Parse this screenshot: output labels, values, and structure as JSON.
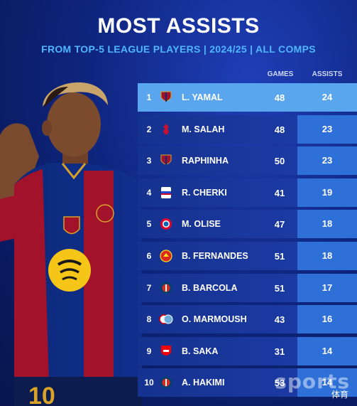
{
  "header": {
    "title": "MOST ASSISTS",
    "subtitle": "FROM TOP-5 LEAGUE PLAYERS | 2024/25 | ALL COMPS"
  },
  "columns": {
    "games": "GAMES",
    "assists": "ASSISTS"
  },
  "rows": [
    {
      "rank": "1",
      "name": "L. YAMAL",
      "games": "48",
      "assists": "24",
      "club_icon": "barcelona-crest-icon"
    },
    {
      "rank": "2",
      "name": "M. SALAH",
      "games": "48",
      "assists": "23",
      "club_icon": "liverpool-crest-icon"
    },
    {
      "rank": "3",
      "name": "RAPHINHA",
      "games": "50",
      "assists": "23",
      "club_icon": "barcelona-crest-icon"
    },
    {
      "rank": "4",
      "name": "R. CHERKI",
      "games": "41",
      "assists": "19",
      "club_icon": "lyon-crest-icon"
    },
    {
      "rank": "5",
      "name": "M. OLISE",
      "games": "47",
      "assists": "18",
      "club_icon": "bayern-crest-icon"
    },
    {
      "rank": "6",
      "name": "B. FERNANDES",
      "games": "51",
      "assists": "18",
      "club_icon": "man-united-crest-icon"
    },
    {
      "rank": "7",
      "name": "B. BARCOLA",
      "games": "51",
      "assists": "17",
      "club_icon": "psg-crest-icon"
    },
    {
      "rank": "8",
      "name": "O. MARMOUSH",
      "games": "43",
      "assists": "16",
      "club_icon": "frankfurt-mancity-crest-icon"
    },
    {
      "rank": "9",
      "name": "B. SAKA",
      "games": "31",
      "assists": "14",
      "club_icon": "arsenal-crest-icon"
    },
    {
      "rank": "10",
      "name": "A. HAKIMI",
      "games": "53",
      "assists": "14",
      "club_icon": "psg-crest-icon"
    }
  ],
  "player": {
    "shirt_number": "10"
  },
  "watermark": {
    "text": "sports",
    "sub": "体育"
  },
  "colors": {
    "background": "#0f2680",
    "highlight_row": "#5aa6ee",
    "assists_cell": "#2f6fd8",
    "subtitle": "#4fb6ff"
  }
}
